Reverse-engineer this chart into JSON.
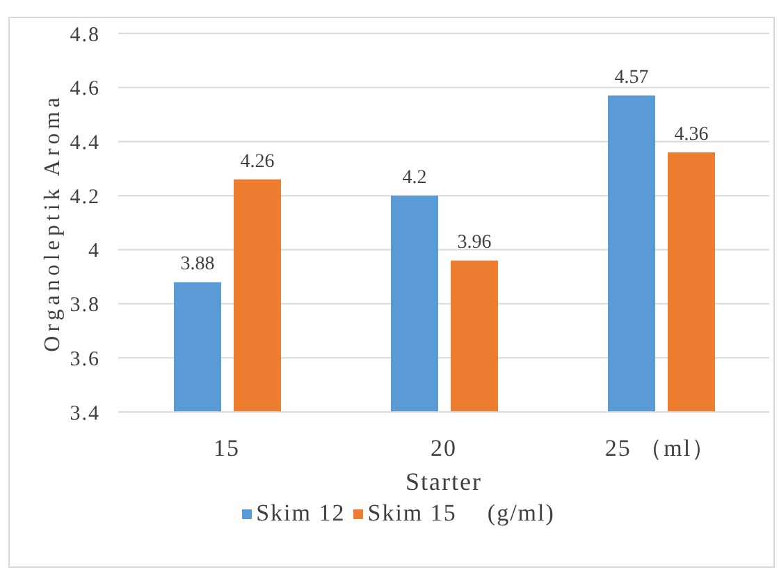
{
  "chart_data": {
    "type": "bar",
    "xlabel": "Starter",
    "ylabel": "Organoleptik Aroma",
    "legend_title": "(g/ml)",
    "categories": [
      "15",
      "20",
      "25 （ml）"
    ],
    "series": [
      {
        "name": "Skim 12",
        "color": "#5b9bd5",
        "values": [
          3.88,
          4.2,
          4.57
        ]
      },
      {
        "name": "Skim 15",
        "color": "#ed7d31",
        "values": [
          4.26,
          3.96,
          4.36
        ]
      }
    ],
    "ylim": [
      3.4,
      4.8
    ],
    "yticks": [
      3.4,
      3.6,
      3.8,
      4,
      4.2,
      4.4,
      4.6,
      4.8
    ],
    "grid": "y",
    "legend": "bottom",
    "data_labels": true
  }
}
